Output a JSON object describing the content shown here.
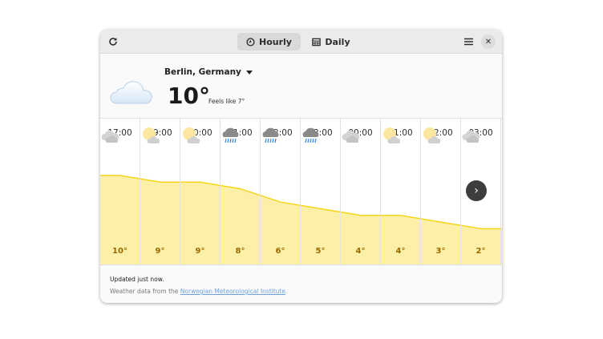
{
  "header": {
    "refresh_icon": "refresh-icon",
    "tabs": [
      {
        "label": "Hourly",
        "icon": "clock-icon",
        "selected": true
      },
      {
        "label": "Daily",
        "icon": "calendar-icon",
        "selected": false
      }
    ],
    "menu_icon": "hamburger-menu-icon",
    "close_icon": "close-icon",
    "close_glyph": "✕"
  },
  "current": {
    "location": "Berlin, Germany",
    "temperature": "10°",
    "feels_like": "Feels like 7°",
    "condition_icon": "cloudy-icon"
  },
  "chart_data": {
    "type": "area",
    "x": [
      "17:00",
      "19:00",
      "20:00",
      "21:00",
      "22:00",
      "23:00",
      "00:00",
      "01:00",
      "02:00",
      "03:00"
    ],
    "values": [
      10,
      9,
      9,
      8,
      6,
      5,
      4,
      4,
      3,
      2
    ],
    "colors": {
      "line": "#f5d41c",
      "fill": "#fcf0a8"
    }
  },
  "hourly": [
    {
      "time": "17:00",
      "icon": "cloudy",
      "temp": "10°"
    },
    {
      "time": "19:00",
      "icon": "partly-cloudy-night",
      "temp": "9°"
    },
    {
      "time": "20:00",
      "icon": "partly-cloudy-night",
      "temp": "9°"
    },
    {
      "time": "21:00",
      "icon": "rain",
      "temp": "8°"
    },
    {
      "time": "22:00",
      "icon": "rain",
      "temp": "6°"
    },
    {
      "time": "23:00",
      "icon": "rain",
      "temp": "5°"
    },
    {
      "time": "00:00",
      "icon": "cloudy",
      "temp": "4°"
    },
    {
      "time": "01:00",
      "icon": "partly-cloudy-night",
      "temp": "4°"
    },
    {
      "time": "02:00",
      "icon": "partly-cloudy-night",
      "temp": "3°"
    },
    {
      "time": "03:00",
      "icon": "cloudy",
      "temp": "2°"
    }
  ],
  "next_button": {
    "icon": "chevron-right-icon",
    "glyph": "›"
  },
  "footer": {
    "updated": "Updated just now.",
    "source_prefix": "Weather data from the ",
    "source_link": "Norwegian Meteorological Institute",
    "source_suffix": "."
  }
}
